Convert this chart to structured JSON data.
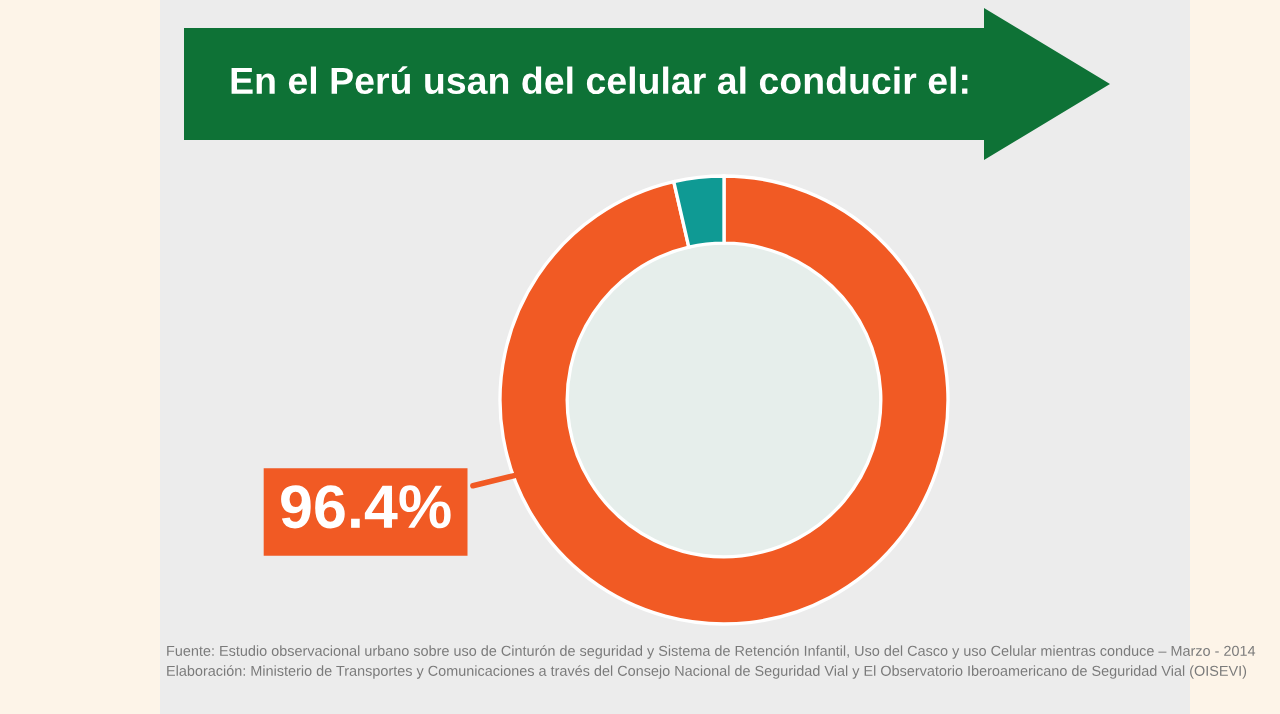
{
  "chart_data": {
    "type": "donut",
    "title": "En el Perú usan del celular al conducir el:",
    "categories": [
      null,
      null
    ],
    "values": [
      96.4,
      3.6
    ],
    "colors": [
      "#f15a24",
      "#0f9a94"
    ],
    "value_labels": [
      "96.4%",
      null
    ],
    "annotations": [
      "Fuente: Estudio observacional urbano sobre uso de Cinturón de seguridad y Sistema de Retención Infantil, Uso del Casco y uso Celular mientras conduce – Marzo - 2014",
      "Elaboración: Ministerio de Transportes y Comunicaciones a través del Consejo Nacional de Seguridad Vial y El Observatorio Iberoamericano de Seguridad Vial (OISEVI)"
    ]
  }
}
